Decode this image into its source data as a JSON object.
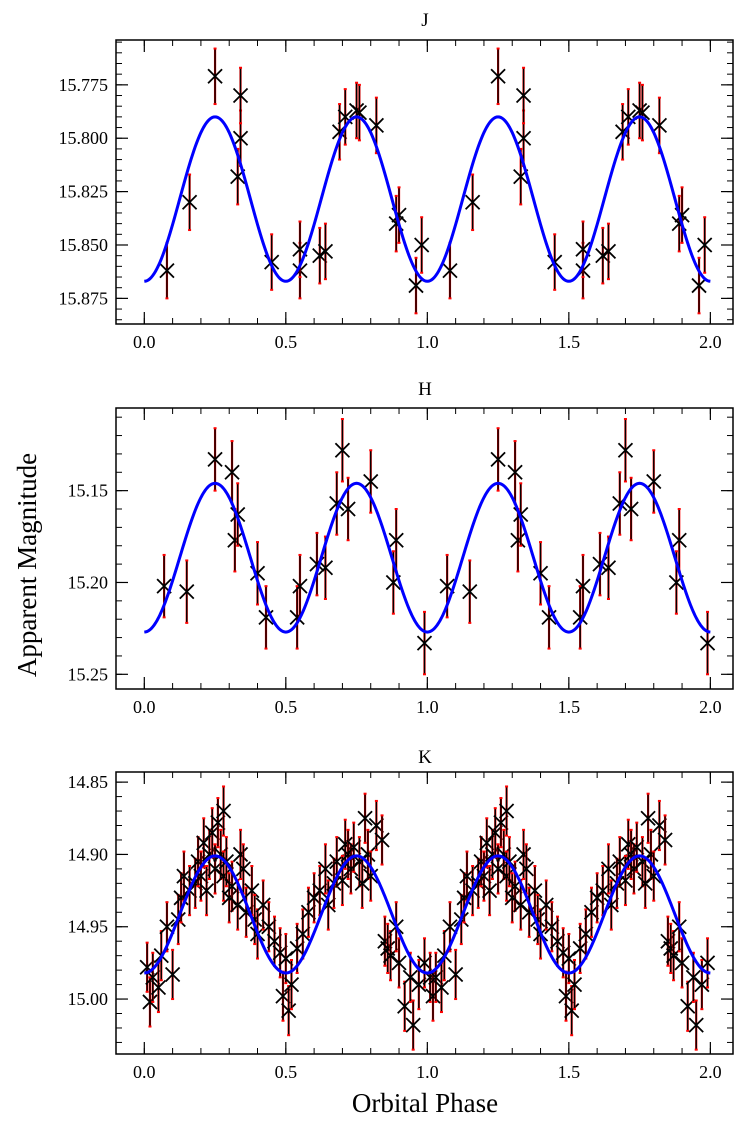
{
  "figure": {
    "ylabel": "Apparent Magnitude",
    "xlabel": "Orbital Phase"
  },
  "chart_data": [
    {
      "type": "scatter",
      "title": "J",
      "xlim": [
        -0.1,
        2.08
      ],
      "ylim": [
        15.887,
        15.754
      ],
      "inverted_y": true,
      "xticks": [
        0.0,
        0.5,
        1.0,
        1.5,
        2.0
      ],
      "xtick_labels": [
        "0.0",
        "0.5",
        "1.0",
        "1.5",
        "2.0"
      ],
      "yticks": [
        15.775,
        15.8,
        15.825,
        15.85,
        15.875
      ],
      "ytick_labels": [
        "15.775",
        "15.800",
        "15.825",
        "15.850",
        "15.875"
      ],
      "model": {
        "mean": 15.8285,
        "amplitude": 0.0385,
        "color": "#0000ff"
      },
      "series": [
        {
          "x": [
            0.08,
            0.16,
            0.25,
            0.33,
            0.34,
            0.34,
            0.45,
            0.55,
            0.55,
            0.62,
            0.64,
            0.69,
            0.71,
            0.75,
            0.76,
            0.82,
            0.89,
            0.9,
            0.96,
            0.98,
            1.08,
            1.16,
            1.25,
            1.33,
            1.34,
            1.34,
            1.45,
            1.55,
            1.55,
            1.62,
            1.64,
            1.69,
            1.71,
            1.75,
            1.76,
            1.82,
            1.89,
            1.9,
            1.96,
            1.98
          ],
          "y": [
            15.862,
            15.83,
            15.771,
            15.818,
            15.8,
            15.78,
            15.858,
            15.862,
            15.852,
            15.855,
            15.853,
            15.797,
            15.79,
            15.787,
            15.788,
            15.794,
            15.84,
            15.836,
            15.869,
            15.85,
            15.862,
            15.83,
            15.771,
            15.818,
            15.8,
            15.78,
            15.858,
            15.862,
            15.852,
            15.855,
            15.853,
            15.797,
            15.79,
            15.787,
            15.788,
            15.794,
            15.84,
            15.836,
            15.869,
            15.85
          ],
          "yerr": 0.013,
          "marker_color": "#000000",
          "errorbar_color": "#ff0000"
        }
      ]
    },
    {
      "type": "scatter",
      "title": "H",
      "xlim": [
        -0.1,
        2.08
      ],
      "ylim": [
        15.258,
        15.105
      ],
      "inverted_y": true,
      "xticks": [
        0.0,
        0.5,
        1.0,
        1.5,
        2.0
      ],
      "xtick_labels": [
        "0.0",
        "0.5",
        "1.0",
        "1.5",
        "2.0"
      ],
      "yticks": [
        15.15,
        15.2,
        15.25
      ],
      "ytick_labels": [
        "15.15",
        "15.20",
        "15.25"
      ],
      "model": {
        "mean": 15.1865,
        "amplitude": 0.0405,
        "color": "#0000ff"
      },
      "series": [
        {
          "x": [
            0.07,
            0.15,
            0.25,
            0.31,
            0.32,
            0.33,
            0.4,
            0.43,
            0.54,
            0.55,
            0.61,
            0.64,
            0.68,
            0.7,
            0.72,
            0.8,
            0.88,
            0.89,
            0.99,
            1.07,
            1.15,
            1.25,
            1.31,
            1.32,
            1.33,
            1.4,
            1.43,
            1.54,
            1.55,
            1.61,
            1.64,
            1.68,
            1.7,
            1.72,
            1.8,
            1.88,
            1.89,
            1.99
          ],
          "y": [
            15.202,
            15.205,
            15.133,
            15.14,
            15.177,
            15.163,
            15.195,
            15.219,
            15.219,
            15.202,
            15.19,
            15.192,
            15.157,
            15.128,
            15.16,
            15.145,
            15.2,
            15.177,
            15.233,
            15.202,
            15.205,
            15.133,
            15.14,
            15.177,
            15.163,
            15.195,
            15.219,
            15.219,
            15.202,
            15.19,
            15.192,
            15.157,
            15.128,
            15.16,
            15.145,
            15.2,
            15.177,
            15.233
          ],
          "yerr": 0.017,
          "marker_color": "#000000",
          "errorbar_color": "#ff0000"
        }
      ]
    },
    {
      "type": "scatter",
      "title": "K",
      "xlim": [
        -0.1,
        2.08
      ],
      "ylim": [
        15.038,
        14.843
      ],
      "inverted_y": true,
      "xticks": [
        0.0,
        0.5,
        1.0,
        1.5,
        2.0
      ],
      "xtick_labels": [
        "0.0",
        "0.5",
        "1.0",
        "1.5",
        "2.0"
      ],
      "yticks": [
        14.85,
        14.9,
        14.95,
        15.0
      ],
      "ytick_labels": [
        "14.85",
        "14.90",
        "14.95",
        "15.00"
      ],
      "model": {
        "mean": 14.9415,
        "amplitude": 0.0405,
        "color": "#0000ff"
      },
      "series": [
        {
          "x": [
            0.01,
            0.02,
            0.03,
            0.05,
            0.06,
            0.08,
            0.1,
            0.12,
            0.13,
            0.14,
            0.16,
            0.18,
            0.19,
            0.2,
            0.21,
            0.22,
            0.23,
            0.24,
            0.25,
            0.26,
            0.27,
            0.28,
            0.28,
            0.29,
            0.3,
            0.31,
            0.33,
            0.34,
            0.35,
            0.36,
            0.38,
            0.39,
            0.4,
            0.42,
            0.44,
            0.46,
            0.48,
            0.49,
            0.5,
            0.51,
            0.52,
            0.54,
            0.56,
            0.58,
            0.6,
            0.62,
            0.64,
            0.65,
            0.67,
            0.68,
            0.7,
            0.71,
            0.72,
            0.73,
            0.74,
            0.76,
            0.77,
            0.78,
            0.79,
            0.8,
            0.82,
            0.84,
            0.85,
            0.86,
            0.87,
            0.89,
            0.9,
            0.92,
            0.94,
            0.95,
            0.97,
            0.99,
            1.01,
            1.02,
            1.03,
            1.05,
            1.06,
            1.08,
            1.1,
            1.12,
            1.13,
            1.14,
            1.16,
            1.18,
            1.19,
            1.2,
            1.21,
            1.22,
            1.23,
            1.24,
            1.25,
            1.26,
            1.27,
            1.28,
            1.28,
            1.29,
            1.3,
            1.31,
            1.33,
            1.34,
            1.35,
            1.36,
            1.38,
            1.39,
            1.4,
            1.42,
            1.44,
            1.46,
            1.48,
            1.49,
            1.5,
            1.51,
            1.52,
            1.54,
            1.56,
            1.58,
            1.6,
            1.62,
            1.64,
            1.65,
            1.67,
            1.68,
            1.7,
            1.71,
            1.72,
            1.73,
            1.74,
            1.76,
            1.77,
            1.78,
            1.79,
            1.8,
            1.82,
            1.84,
            1.85,
            1.86,
            1.87,
            1.89,
            1.9,
            1.92,
            1.94,
            1.95,
            1.97,
            1.99
          ],
          "y": [
            14.978,
            15.002,
            14.985,
            14.992,
            14.97,
            14.95,
            14.983,
            14.945,
            14.93,
            14.915,
            14.925,
            14.92,
            14.905,
            14.915,
            14.892,
            14.925,
            14.9,
            14.885,
            14.91,
            14.878,
            14.9,
            14.87,
            14.915,
            14.905,
            14.93,
            14.922,
            14.935,
            14.9,
            14.91,
            14.94,
            14.925,
            14.945,
            14.955,
            14.935,
            14.95,
            14.96,
            14.968,
            14.998,
            14.972,
            15.008,
            14.99,
            14.965,
            14.955,
            14.94,
            14.93,
            14.925,
            14.91,
            14.935,
            14.92,
            14.905,
            14.918,
            14.893,
            14.9,
            14.91,
            14.895,
            14.905,
            14.92,
            14.875,
            14.9,
            14.915,
            14.88,
            14.89,
            14.96,
            14.965,
            14.97,
            14.95,
            14.975,
            15.005,
            14.985,
            15.018,
            14.99,
            14.975,
            14.985,
            14.998,
            14.985,
            14.992,
            14.97,
            14.95,
            14.983,
            14.945,
            14.93,
            14.915,
            14.925,
            14.92,
            14.905,
            14.915,
            14.892,
            14.925,
            14.9,
            14.885,
            14.91,
            14.878,
            14.9,
            14.87,
            14.915,
            14.905,
            14.93,
            14.922,
            14.935,
            14.9,
            14.91,
            14.94,
            14.925,
            14.945,
            14.955,
            14.935,
            14.95,
            14.96,
            14.968,
            14.998,
            14.972,
            15.008,
            14.99,
            14.965,
            14.955,
            14.94,
            14.93,
            14.925,
            14.91,
            14.935,
            14.92,
            14.905,
            14.918,
            14.893,
            14.9,
            14.91,
            14.895,
            14.905,
            14.92,
            14.875,
            14.9,
            14.915,
            14.88,
            14.89,
            14.96,
            14.965,
            14.97,
            14.95,
            14.975,
            15.005,
            14.985,
            15.018,
            14.99,
            14.975
          ],
          "yerr": 0.017,
          "marker_color": "#000000",
          "errorbar_color": "#ff0000"
        }
      ]
    }
  ]
}
